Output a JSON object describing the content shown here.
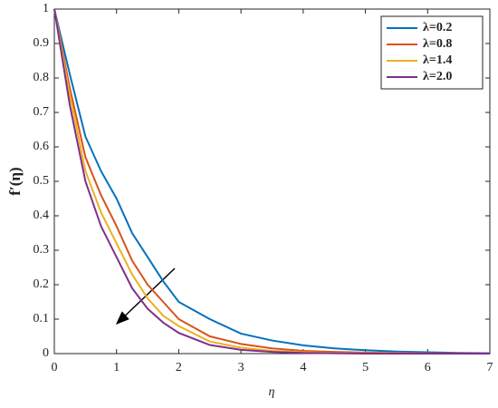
{
  "chart_data": {
    "type": "line",
    "x_label": "η",
    "y_label": "f′(η)",
    "x": [
      0,
      0.25,
      0.5,
      0.75,
      1,
      1.25,
      1.5,
      1.75,
      2,
      2.5,
      3,
      3.5,
      4,
      4.5,
      5,
      5.5,
      6,
      6.5,
      7
    ],
    "series": [
      {
        "name": "λ=0.2",
        "color": "#0072bd",
        "values": [
          1,
          0.81,
          0.63,
          0.53,
          0.45,
          0.35,
          0.28,
          0.21,
          0.15,
          0.1,
          0.058,
          0.038,
          0.024,
          0.015,
          0.01,
          0.006,
          0.004,
          0.002,
          0.001
        ]
      },
      {
        "name": "λ=0.8",
        "color": "#d95319",
        "values": [
          1,
          0.77,
          0.57,
          0.46,
          0.37,
          0.27,
          0.2,
          0.15,
          0.1,
          0.05,
          0.028,
          0.015,
          0.008,
          0.005,
          0.003,
          0.002,
          0.001,
          0.001,
          0
        ]
      },
      {
        "name": "λ=1.4",
        "color": "#edb120",
        "values": [
          1,
          0.75,
          0.53,
          0.41,
          0.32,
          0.23,
          0.16,
          0.11,
          0.08,
          0.035,
          0.017,
          0.008,
          0.004,
          0.002,
          0.001,
          0.001,
          0,
          0,
          0
        ]
      },
      {
        "name": "λ=2.0",
        "color": "#7e2f8e",
        "values": [
          1,
          0.72,
          0.5,
          0.37,
          0.28,
          0.19,
          0.13,
          0.09,
          0.06,
          0.025,
          0.011,
          0.005,
          0.002,
          0.001,
          0,
          0,
          0,
          0,
          0
        ]
      }
    ],
    "xlim": [
      0,
      7
    ],
    "xticks": [
      0,
      1,
      2,
      3,
      4,
      5,
      6,
      7
    ],
    "ylim": [
      0,
      1
    ],
    "yticks": [
      0,
      0.1,
      0.2,
      0.3,
      0.4,
      0.5,
      0.6,
      0.7,
      0.8,
      0.9,
      1
    ],
    "grid": false,
    "legend": "upper right"
  }
}
